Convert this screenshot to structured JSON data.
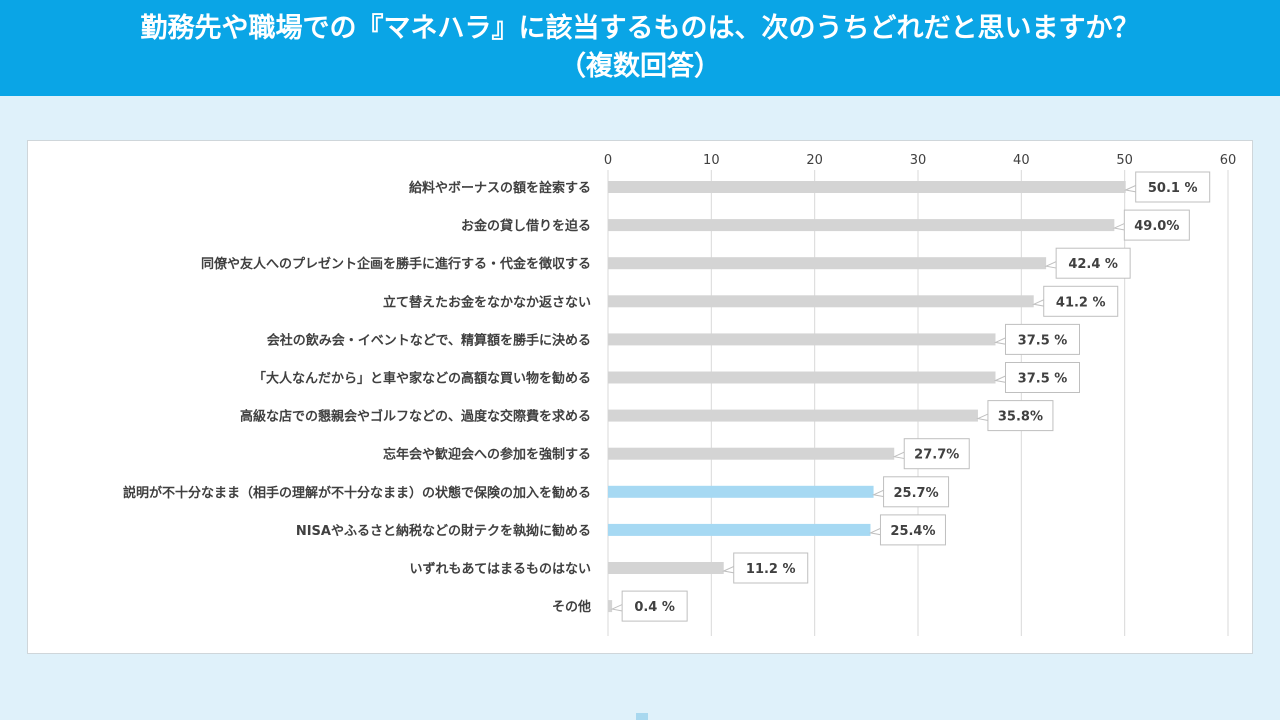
{
  "header": {
    "title_line1": "勤務先や職場での『マネハラ』に該当するものは、次のうちどれだと思いますか？",
    "title_line2": "（複数回答）"
  },
  "colors": {
    "banner": "#0aa5e6",
    "bar_default": "#d4d4d4",
    "bar_highlight": "#a6d9f3",
    "background": "#dff1fa"
  },
  "chart_data": {
    "type": "bar",
    "orientation": "horizontal",
    "xlim": [
      0,
      60
    ],
    "xticks": [
      0,
      10,
      20,
      30,
      40,
      50,
      60
    ],
    "x_axis_position": "top",
    "grid": true,
    "categories": [
      "給料やボーナスの額を詮索する",
      "お金の貸し借りを迫る",
      "同僚や友人へのプレゼント企画を勝手に進行する・代金を徴収する",
      "立て替えたお金をなかなか返さない",
      "会社の飲み会・イベントなどで、精算額を勝手に決める",
      "「大人なんだから」と車や家などの高額な買い物を勧める",
      "高級な店での懇親会やゴルフなどの、過度な交際費を求める",
      "忘年会や歓迎会への参加を強制する",
      "説明が不十分なまま（相手の理解が不十分なまま）の状態で保険の加入を勧める",
      "NISAやふるさと納税などの財テクを執拗に勧める",
      "いずれもあてはまるものはない",
      "その他"
    ],
    "values": [
      50.1,
      49.0,
      42.4,
      41.2,
      37.5,
      37.5,
      35.8,
      27.7,
      25.7,
      25.4,
      11.2,
      0.4
    ],
    "value_labels": [
      "50.1 %",
      "49.0%",
      "42.4 %",
      "41.2 %",
      "37.5 %",
      "37.5 %",
      "35.8%",
      "27.7%",
      "25.7%",
      "25.4%",
      "11.2 %",
      "0.4 %"
    ],
    "highlighted": [
      false,
      false,
      false,
      false,
      false,
      false,
      false,
      false,
      true,
      true,
      false,
      false
    ]
  }
}
